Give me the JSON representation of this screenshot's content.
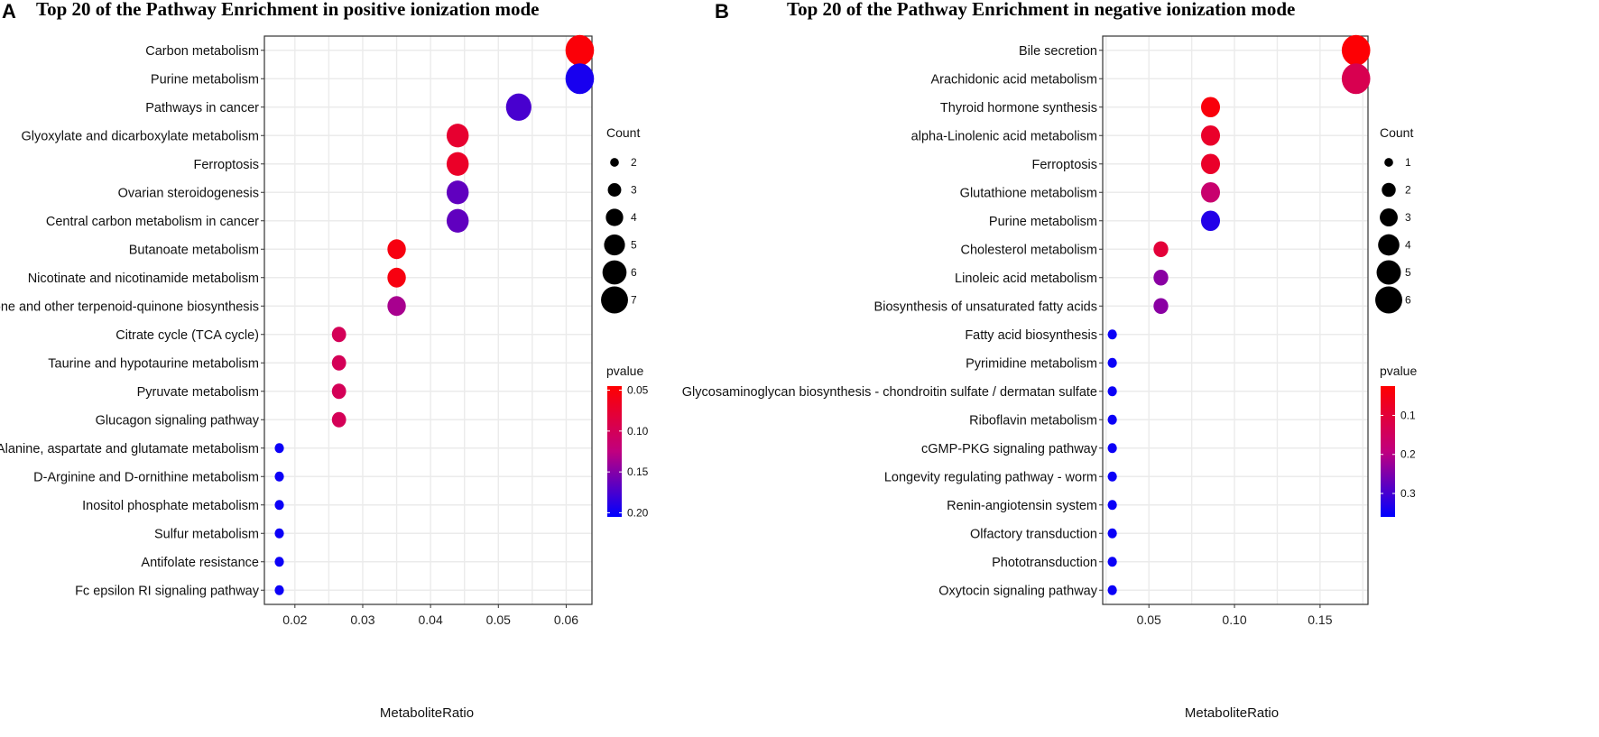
{
  "chart_data": [
    {
      "panel": "A",
      "type": "scatter",
      "title": "Top 20 of the Pathway Enrichment in positive ionization mode",
      "xlabel": "MetaboliteRatio",
      "ylabel": "",
      "xlim": [
        0.0155,
        0.0638
      ],
      "xticks": [
        0.02,
        0.03,
        0.04,
        0.05,
        0.06
      ],
      "xtick_labels": [
        "0.02",
        "0.03",
        "0.04",
        "0.05",
        "0.06"
      ],
      "pathways": [
        "Carbon metabolism",
        "Purine metabolism",
        "Pathways in cancer",
        "Glyoxylate and dicarboxylate metabolism",
        "Ferroptosis",
        "Ovarian steroidogenesis",
        "Central carbon metabolism in cancer",
        "Butanoate metabolism",
        "Nicotinate and nicotinamide metabolism",
        "Ubiquinone and other terpenoid-quinone biosynthesis",
        "Citrate cycle (TCA cycle)",
        "Taurine and hypotaurine metabolism",
        "Pyruvate metabolism",
        "Glucagon signaling pathway",
        "Alanine, aspartate and glutamate metabolism",
        "D-Arginine and D-ornithine metabolism",
        "Inositol phosphate metabolism",
        "Sulfur metabolism",
        "Antifolate resistance",
        "Fc epsilon RI signaling pathway"
      ],
      "ratio": [
        0.062,
        0.062,
        0.053,
        0.044,
        0.044,
        0.044,
        0.044,
        0.035,
        0.035,
        0.035,
        0.0265,
        0.0265,
        0.0265,
        0.0265,
        0.0177,
        0.0177,
        0.0177,
        0.0177,
        0.0177,
        0.0177
      ],
      "count": [
        7,
        7,
        6,
        5,
        5,
        5,
        5,
        4,
        4,
        4,
        3,
        3,
        3,
        3,
        2,
        2,
        2,
        2,
        2,
        2
      ],
      "pvalue": [
        0.05,
        0.195,
        0.175,
        0.075,
        0.07,
        0.165,
        0.165,
        0.055,
        0.055,
        0.135,
        0.1,
        0.1,
        0.1,
        0.1,
        0.2,
        0.2,
        0.2,
        0.2,
        0.2,
        0.2
      ],
      "size_legend": {
        "title": "Count",
        "values": [
          2,
          3,
          4,
          5,
          6,
          7
        ]
      },
      "color_legend": {
        "title": "pvalue",
        "min": 0.045,
        "max": 0.205,
        "ticks": [
          0.05,
          0.1,
          0.15,
          0.2
        ],
        "tick_labels": [
          "0.05",
          "0.10",
          "0.15",
          "0.20"
        ]
      }
    },
    {
      "panel": "B",
      "type": "scatter",
      "title": "Top 20 of the Pathway Enrichment in negative ionization mode",
      "xlabel": "MetaboliteRatio",
      "ylabel": "",
      "xlim": [
        0.023,
        0.178
      ],
      "xticks": [
        0.05,
        0.1,
        0.15
      ],
      "xtick_labels": [
        "0.05",
        "0.10",
        "0.15"
      ],
      "pathways": [
        "Bile secretion",
        "Arachidonic acid metabolism",
        "Thyroid hormone synthesis",
        "alpha-Linolenic acid metabolism",
        "Ferroptosis",
        "Glutathione metabolism",
        "Purine metabolism",
        "Cholesterol metabolism",
        "Linoleic acid metabolism",
        "Biosynthesis of unsaturated fatty acids",
        "Fatty acid biosynthesis",
        "Pyrimidine metabolism",
        "Glycosaminoglycan biosynthesis - chondroitin sulfate / dermatan sulfate",
        "Riboflavin metabolism",
        "cGMP-PKG signaling pathway",
        "Longevity regulating pathway - worm",
        "Renin-angiotensin system",
        "Olfactory transduction",
        "Phototransduction",
        "Oxytocin signaling pathway"
      ],
      "ratio": [
        0.171,
        0.171,
        0.086,
        0.086,
        0.086,
        0.086,
        0.086,
        0.057,
        0.057,
        0.057,
        0.0286,
        0.0286,
        0.0286,
        0.0286,
        0.0286,
        0.0286,
        0.0286,
        0.0286,
        0.0286,
        0.0286
      ],
      "count": [
        6,
        6,
        3,
        3,
        3,
        3,
        3,
        2,
        2,
        2,
        1,
        1,
        1,
        1,
        1,
        1,
        1,
        1,
        1,
        1
      ],
      "pvalue": [
        0.03,
        0.13,
        0.04,
        0.08,
        0.08,
        0.17,
        0.33,
        0.1,
        0.24,
        0.24,
        0.35,
        0.35,
        0.35,
        0.35,
        0.35,
        0.35,
        0.35,
        0.35,
        0.35,
        0.35
      ],
      "size_legend": {
        "title": "Count",
        "values": [
          1,
          2,
          3,
          4,
          5,
          6
        ]
      },
      "color_legend": {
        "title": "pvalue",
        "min": 0.025,
        "max": 0.36,
        "ticks": [
          0.1,
          0.2,
          0.3
        ],
        "tick_labels": [
          "0.1",
          "0.2",
          "0.3"
        ]
      }
    }
  ],
  "colors": {
    "low_p": "#ff0000",
    "high_p": "#0000ff",
    "grid": "#ebebeb",
    "panel_border": "#333333",
    "legend_dot": "#000000"
  }
}
